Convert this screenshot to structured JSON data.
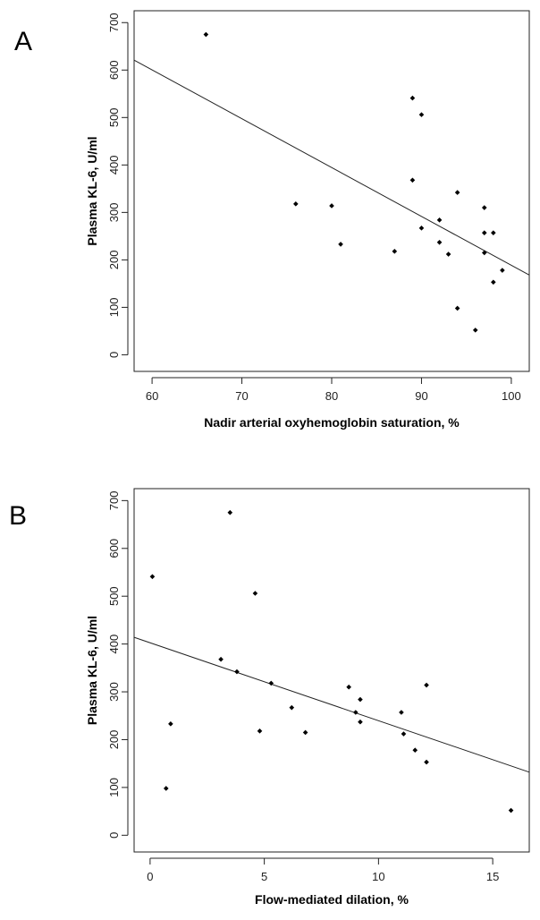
{
  "chart_data": [
    {
      "type": "scatter",
      "panel_label": "A",
      "xlabel": "Nadir arterial oxyhemoglobin saturation, %",
      "ylabel": "Plasma KL-6, U/ml",
      "xlim": [
        58,
        102
      ],
      "ylim": [
        -35,
        725
      ],
      "xticks": [
        60,
        70,
        80,
        90,
        100
      ],
      "yticks": [
        0,
        100,
        200,
        300,
        400,
        500,
        600,
        700
      ],
      "grid": false,
      "box": true,
      "fit_line": {
        "x": [
          58,
          102
        ],
        "y": [
          621,
          168
        ]
      },
      "points": [
        {
          "x": 66,
          "y": 675
        },
        {
          "x": 76,
          "y": 318
        },
        {
          "x": 80,
          "y": 314
        },
        {
          "x": 81,
          "y": 233
        },
        {
          "x": 87,
          "y": 218
        },
        {
          "x": 89,
          "y": 541
        },
        {
          "x": 90,
          "y": 506
        },
        {
          "x": 89,
          "y": 368
        },
        {
          "x": 90,
          "y": 267
        },
        {
          "x": 92,
          "y": 284
        },
        {
          "x": 92,
          "y": 237
        },
        {
          "x": 93,
          "y": 212
        },
        {
          "x": 94,
          "y": 342
        },
        {
          "x": 94,
          "y": 98
        },
        {
          "x": 96,
          "y": 52
        },
        {
          "x": 97,
          "y": 310
        },
        {
          "x": 97,
          "y": 257
        },
        {
          "x": 97,
          "y": 215
        },
        {
          "x": 98,
          "y": 257
        },
        {
          "x": 98,
          "y": 153
        },
        {
          "x": 99,
          "y": 178
        }
      ]
    },
    {
      "type": "scatter",
      "panel_label": "B",
      "xlabel": "Flow-mediated dilation, %",
      "ylabel": "Plasma KL-6, U/ml",
      "xlim": [
        -0.7,
        16.6
      ],
      "ylim": [
        -35,
        725
      ],
      "xticks": [
        0,
        5,
        10,
        15
      ],
      "yticks": [
        0,
        100,
        200,
        300,
        400,
        500,
        600,
        700
      ],
      "grid": false,
      "box": true,
      "fit_line": {
        "x": [
          -0.7,
          16.6
        ],
        "y": [
          414,
          132
        ]
      },
      "points": [
        {
          "x": 0.1,
          "y": 541
        },
        {
          "x": 0.7,
          "y": 98
        },
        {
          "x": 0.9,
          "y": 233
        },
        {
          "x": 3.1,
          "y": 368
        },
        {
          "x": 3.5,
          "y": 675
        },
        {
          "x": 3.8,
          "y": 342
        },
        {
          "x": 4.6,
          "y": 506
        },
        {
          "x": 4.8,
          "y": 218
        },
        {
          "x": 5.3,
          "y": 318
        },
        {
          "x": 6.2,
          "y": 267
        },
        {
          "x": 6.8,
          "y": 215
        },
        {
          "x": 8.7,
          "y": 310
        },
        {
          "x": 9.0,
          "y": 257
        },
        {
          "x": 9.2,
          "y": 284
        },
        {
          "x": 9.2,
          "y": 237
        },
        {
          "x": 11.0,
          "y": 257
        },
        {
          "x": 11.1,
          "y": 212
        },
        {
          "x": 11.6,
          "y": 178
        },
        {
          "x": 12.1,
          "y": 314
        },
        {
          "x": 12.1,
          "y": 153
        },
        {
          "x": 15.8,
          "y": 52
        }
      ]
    }
  ]
}
